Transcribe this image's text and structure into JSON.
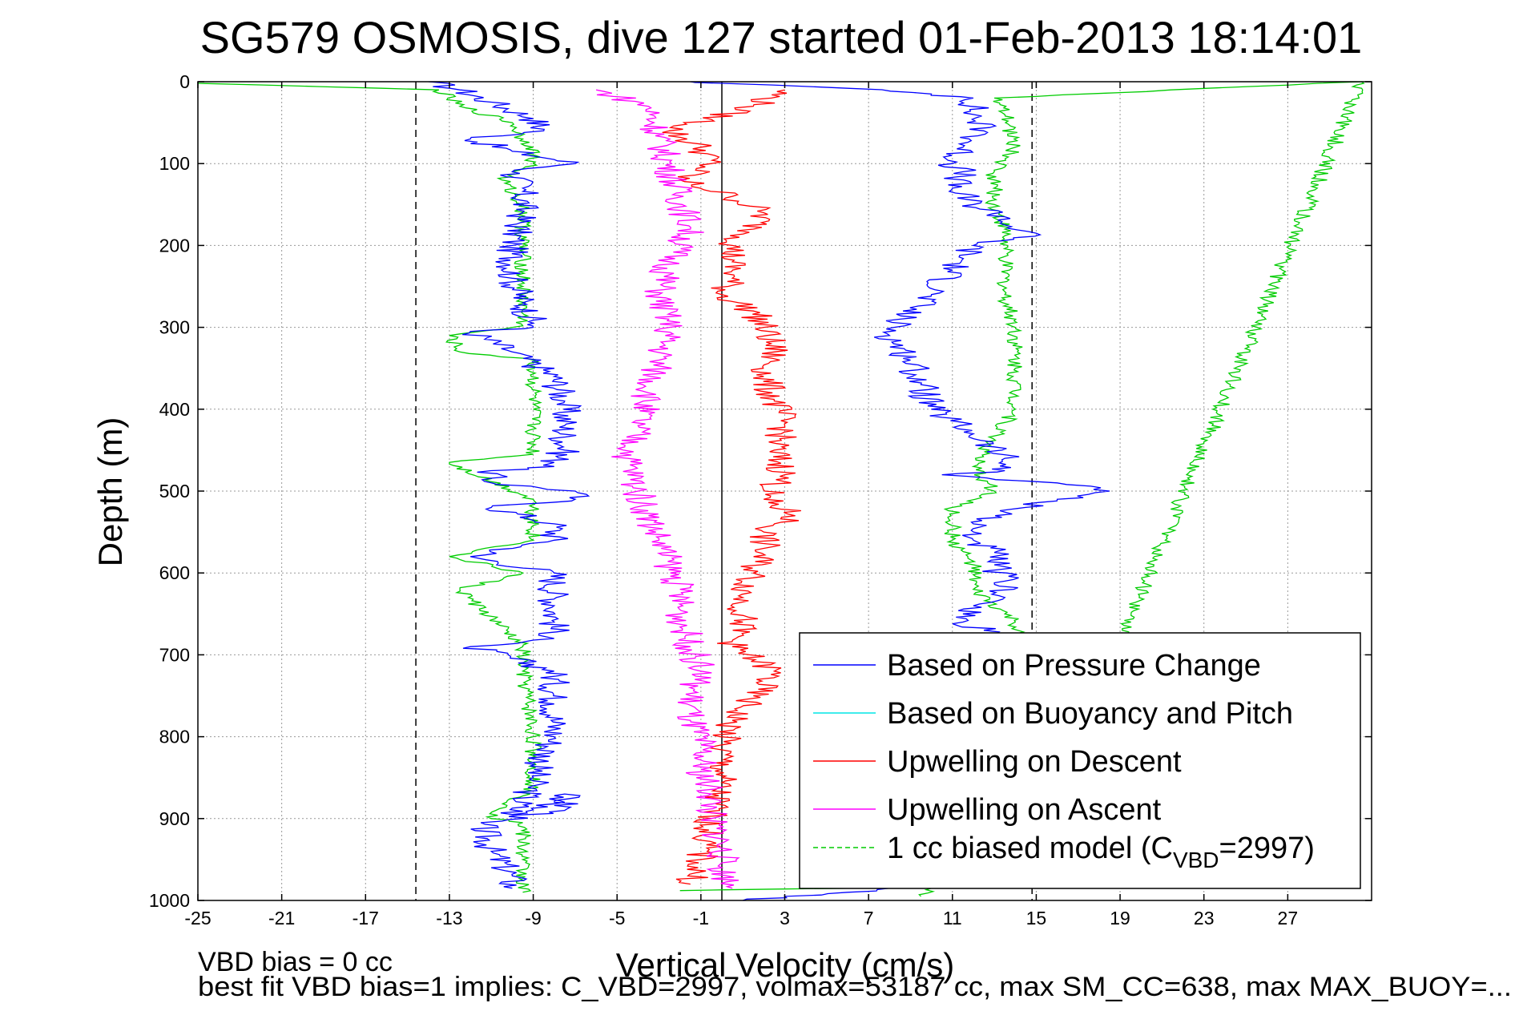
{
  "chart_data": {
    "type": "line",
    "title": "SG579 OSMOSIS, dive 127 started 01-Feb-2013 18:14:01",
    "xlabel": "Vertical Velocity (cm/s)",
    "ylabel": "Depth (m)",
    "xlim": [
      -25,
      31
    ],
    "ylim": [
      0,
      1000
    ],
    "y_reversed": true,
    "grid": true,
    "x_ticks": [
      -25,
      -21,
      -17,
      -13,
      -9,
      -5,
      -1,
      3,
      7,
      11,
      15,
      19,
      23,
      27
    ],
    "x_tick_labels": [
      "-25",
      "-21",
      "-17",
      "-13",
      "-9",
      "-5",
      "-1",
      "3",
      "7",
      "11",
      "15",
      "19",
      "23",
      "27"
    ],
    "y_ticks": [
      0,
      100,
      200,
      300,
      400,
      500,
      600,
      700,
      800,
      900,
      1000
    ],
    "y_tick_labels": [
      "0",
      "100",
      "200",
      "300",
      "400",
      "500",
      "600",
      "700",
      "800",
      "900",
      "1000"
    ],
    "reference_lines": [
      {
        "x": -14.6,
        "style": "dashed",
        "color": "#000000"
      },
      {
        "x": 0,
        "style": "solid",
        "color": "#000000"
      },
      {
        "x": 14.8,
        "style": "dashed",
        "color": "#000000"
      }
    ],
    "legend_position": "bottom-right",
    "series": [
      {
        "name": "Based on Pressure Change",
        "color": "#0000ff",
        "style": "solid",
        "segments": [
          {
            "x": [
              -14.0,
              -12.5,
              -11.0,
              -9.0,
              -8.5,
              -12.0,
              -10.0,
              -8.0,
              -7.0,
              -10.0,
              -9.5,
              -9.5,
              -10.0,
              -10.0,
              -9.5,
              -9.0,
              -9.0,
              -12.0,
              -10.0,
              -8.0,
              -7.5,
              -7.5,
              -7.5,
              -8.0,
              -8.0,
              -11.0,
              -11.0,
              -7.0,
              -7.0,
              -11.0,
              -8.0,
              -8.0,
              -12.0,
              -8.0,
              -8.0,
              -8.0,
              -8.0,
              -12.0,
              -8.0,
              -8.0,
              -8.0,
              -9.0,
              -9.0,
              -10.0,
              -7.5,
              -7.5,
              -7.5,
              -11.5,
              -11.0,
              -10.0,
              -10.0
            ],
            "y": [
              0,
              10,
              25,
              45,
              60,
              70,
              85,
              95,
              100,
              110,
              130,
              160,
              200,
              240,
              270,
              295,
              300,
              305,
              330,
              360,
              390,
              420,
              450,
              465,
              470,
              475,
              490,
              500,
              510,
              520,
              540,
              560,
              580,
              600,
              640,
              660,
              680,
              690,
              720,
              760,
              800,
              850,
              860,
              895,
              880,
              870,
              890,
              905,
              940,
              970,
              985
            ]
          },
          {
            "x": [
              -1.5,
              0,
              6,
              10,
              12.0,
              12.0,
              12.5,
              11.5,
              11.0,
              11.5,
              11.0,
              12.0,
              13.5,
              13.5,
              15.0,
              12.0,
              11.0,
              10.0,
              8.5,
              8.0,
              9.0,
              9.5,
              10.0,
              12.0,
              13.5,
              13.5,
              10.5,
              16.0,
              18.5,
              16.0,
              14.5,
              12.0,
              12.0,
              13.0,
              13.0,
              13.5,
              13.5,
              12.0,
              11.5,
              11.5,
              12.5,
              13.5,
              12.0,
              12.5,
              12.0,
              14.0,
              14.5,
              12.5,
              12.0,
              12.0,
              13.0,
              13.5,
              14.0,
              12.0,
              11.5,
              12.0,
              11.0,
              10.0,
              8.0,
              6.0,
              3.0,
              1.0
            ],
            "y": [
              0,
              2,
              8,
              15,
              20,
              40,
              60,
              80,
              100,
              110,
              130,
              150,
              165,
              175,
              185,
              200,
              230,
              260,
              290,
              310,
              340,
              370,
              400,
              430,
              460,
              475,
              480,
              490,
              500,
              510,
              520,
              540,
              560,
              575,
              590,
              610,
              630,
              640,
              650,
              660,
              670,
              680,
              695,
              710,
              730,
              760,
              800,
              830,
              860,
              880,
              900,
              920,
              940,
              950,
              960,
              970,
              975,
              980,
              985,
              990,
              995,
              1000
            ]
          }
        ]
      },
      {
        "name": "Based on Buoyancy and Pitch",
        "color": "#00e5e5",
        "style": "solid",
        "segments": []
      },
      {
        "name": "Upwelling on Descent",
        "color": "#ff0000",
        "style": "solid",
        "segments": [
          {
            "x": [
              3.0,
              1.5,
              -2.5,
              -1.0,
              -0.5,
              -2.0,
              0.5,
              2.0,
              1.5,
              0.5,
              0.5,
              0.5,
              0.0,
              1.5,
              2.0,
              2.5,
              2.0,
              2.5,
              3.0,
              2.5,
              3.0,
              2.0,
              3.5,
              2.0,
              2.0,
              1.5,
              1.0,
              1.0,
              0.5,
              2.5,
              1.5,
              0.5,
              0.0,
              0.0,
              -0.5,
              -1.0,
              -1.5
            ],
            "y": [
              10,
              30,
              60,
              80,
              100,
              120,
              140,
              160,
              180,
              200,
              220,
              240,
              260,
              280,
              300,
              330,
              360,
              390,
              420,
              450,
              480,
              510,
              530,
              550,
              570,
              600,
              630,
              660,
              690,
              720,
              750,
              780,
              810,
              850,
              900,
              950,
              980
            ]
          }
        ]
      },
      {
        "name": "Upwelling on Ascent",
        "color": "#ff00ff",
        "style": "solid",
        "segments": [
          {
            "x": [
              -6.0,
              -3.5,
              -1.5,
              -2.5,
              -3.0,
              -2.5,
              -3.0,
              -3.5,
              -4.0,
              -4.5,
              -4.0,
              -3.5,
              -3.0,
              -2.5,
              -2.0,
              -2.0,
              -1.5,
              -1.0,
              -1.5,
              -1.5,
              -1.0,
              -1.0,
              -0.5,
              -0.5,
              0.0,
              0.0,
              0.5
            ],
            "y": [
              10,
              30,
              180,
              220,
              260,
              300,
              340,
              380,
              420,
              460,
              500,
              530,
              560,
              590,
              620,
              650,
              690,
              720,
              750,
              780,
              810,
              840,
              870,
              900,
              930,
              960,
              985
            ]
          }
        ]
      },
      {
        "name": "1 cc biased model (CVBD=2997)",
        "color": "#00cc00",
        "style": "dashed",
        "segments": [
          {
            "x": [
              -25.0,
              -13.5,
              -12.5,
              -10.0,
              -9.5,
              -9.0,
              -9.0,
              -10.5,
              -9.5,
              -9.5,
              -9.5,
              -9.5,
              -9.5,
              -9.5,
              -13.0,
              -12.5,
              -9.0,
              -9.0,
              -9.0,
              -13.0,
              -9.0,
              -9.0,
              -9.0,
              -13.0,
              -9.5,
              -12.5,
              -9.5,
              -9.5,
              -9.5,
              -9.0,
              -9.0,
              -11.0,
              -9.5,
              -9.5,
              -9.5,
              -9.5
            ],
            "y": [
              2,
              10,
              30,
              50,
              70,
              80,
              100,
              120,
              150,
              180,
              210,
              250,
              290,
              298,
              310,
              330,
              340,
              400,
              455,
              465,
              510,
              520,
              560,
              580,
              600,
              620,
              690,
              710,
              720,
              800,
              860,
              900,
              905,
              950,
              975,
              990
            ]
          },
          {
            "x": [
              -2.0,
              3.0,
              10.0,
              14.0,
              30.5,
              13.0,
              13.5,
              14.0,
              13.0,
              13.0,
              13.5,
              13.5,
              13.5,
              14.0,
              14.0,
              14.0,
              12.0,
              13.0,
              11.0,
              11.0,
              12.0,
              12.0,
              13.5,
              14.0,
              14.0,
              14.0,
              14.0,
              13.5,
              12.0,
              12.0,
              13.0,
              13.5,
              13.5,
              14.5,
              15.0,
              12.0,
              10.0,
              9.5
            ],
            "y": [
              988,
              986,
              984,
              982,
              0,
              20,
              40,
              80,
              110,
              150,
              180,
              220,
              260,
              300,
              350,
              400,
              470,
              500,
              520,
              560,
              590,
              620,
              650,
              660,
              690,
              720,
              760,
              800,
              830,
              860,
              880,
              900,
              920,
              940,
              960,
              975,
              985,
              995
            ]
          }
        ]
      }
    ]
  },
  "legend": {
    "items": [
      {
        "label": "Based on Pressure Change",
        "color": "#0000ff",
        "style": "solid"
      },
      {
        "label": "Based on Buoyancy and Pitch",
        "color": "#00e5e5",
        "style": "solid"
      },
      {
        "label": "Upwelling on Descent",
        "color": "#ff0000",
        "style": "solid"
      },
      {
        "label": "Upwelling on Ascent",
        "color": "#ff00ff",
        "style": "solid"
      },
      {
        "label_main": "1 cc biased model (C",
        "label_sub": "VBD",
        "label_tail": "=2997)",
        "color": "#00cc00",
        "style": "dashed"
      }
    ]
  },
  "notes": {
    "vbd_bias": "VBD bias = 0 cc",
    "best_fit": "best fit VBD bias=1 implies: C_VBD=2997, volmax=53187 cc, max SM_CC=638, max MAX_BUOY=..."
  }
}
